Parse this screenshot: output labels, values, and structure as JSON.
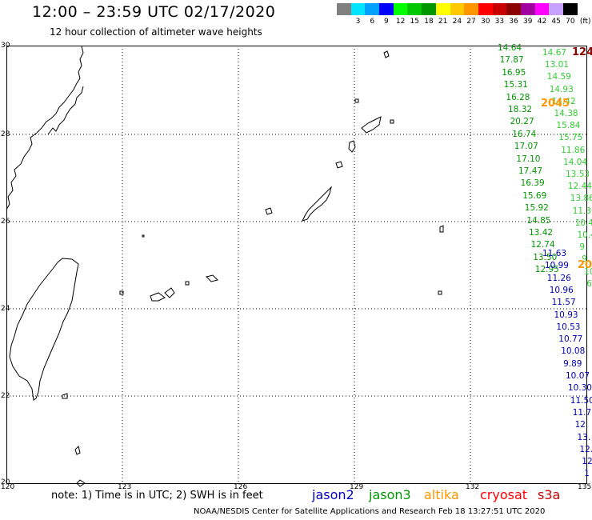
{
  "header": {
    "title": "12:00 – 23:59 UTC 02/17/2020",
    "subtitle": "12 hour collection of altimeter wave heights"
  },
  "legend": {
    "colors": [
      "#808080",
      "#00e5ff",
      "#00a0ff",
      "#0000ff",
      "#00ff00",
      "#00c800",
      "#009600",
      "#ffff00",
      "#ffc800",
      "#ff9600",
      "#ff0000",
      "#c80000",
      "#8c0000",
      "#a000a0",
      "#ff00ff",
      "#c8a0ff",
      "#000000"
    ],
    "labels": [
      "",
      "3",
      "6",
      "9",
      "12",
      "15",
      "18",
      "21",
      "24",
      "27",
      "30",
      "33",
      "36",
      "39",
      "42",
      "45",
      "70",
      "(ft)"
    ]
  },
  "axes": {
    "lat_labels": [
      "30",
      "28",
      "26",
      "24",
      "22",
      "20"
    ],
    "lon_labels": [
      "120",
      "123",
      "126",
      "129",
      "132",
      "135"
    ]
  },
  "track_green": [
    "14.64",
    "17.87",
    "16.95",
    "15.31",
    "16.28",
    "18.32",
    "20.27",
    "16.74",
    "17.07",
    "17.10",
    "17.47",
    "16.39",
    "15.69",
    "15.92",
    "14.85",
    "13.42",
    "12.74",
    "13.50",
    "12.95"
  ],
  "track_light": [
    "14.67",
    "13.01",
    "14.59",
    "14.93",
    "14.42",
    "14.38",
    "15.84",
    "15.75",
    "11.86",
    "14.04",
    "13.53",
    "12.44",
    "13.86",
    "11.30",
    "10.4",
    "10.4",
    "9.",
    "9.",
    "10",
    "6"
  ],
  "track_blue": [
    "11.63",
    "10.99",
    "11.26",
    "10.96",
    "11.57",
    "10.93",
    "10.53",
    "10.77",
    "10.08",
    "9.89",
    "10.07",
    "10.30",
    "11.50",
    "11.7",
    "12.",
    "13.",
    "12.",
    "12",
    "1"
  ],
  "markers": {
    "red_top": "124",
    "orange_top": "2045",
    "orange_mid": "20"
  },
  "footer": {
    "note": "note:  1) Time is in UTC;  2) SWH is in feet",
    "missions": [
      {
        "name": "jason2",
        "color": "#0000c8"
      },
      {
        "name": "jason3",
        "color": "#009600"
      },
      {
        "name": "altika",
        "color": "#ff9600"
      },
      {
        "name": "cryosat",
        "color": "#ff0000"
      },
      {
        "name": "s3a",
        "color": "#c80000"
      }
    ],
    "credit": "NOAA/NESDIS Center for Satellite Applications and Research    Feb 18 13:27:51 UTC 2020"
  }
}
